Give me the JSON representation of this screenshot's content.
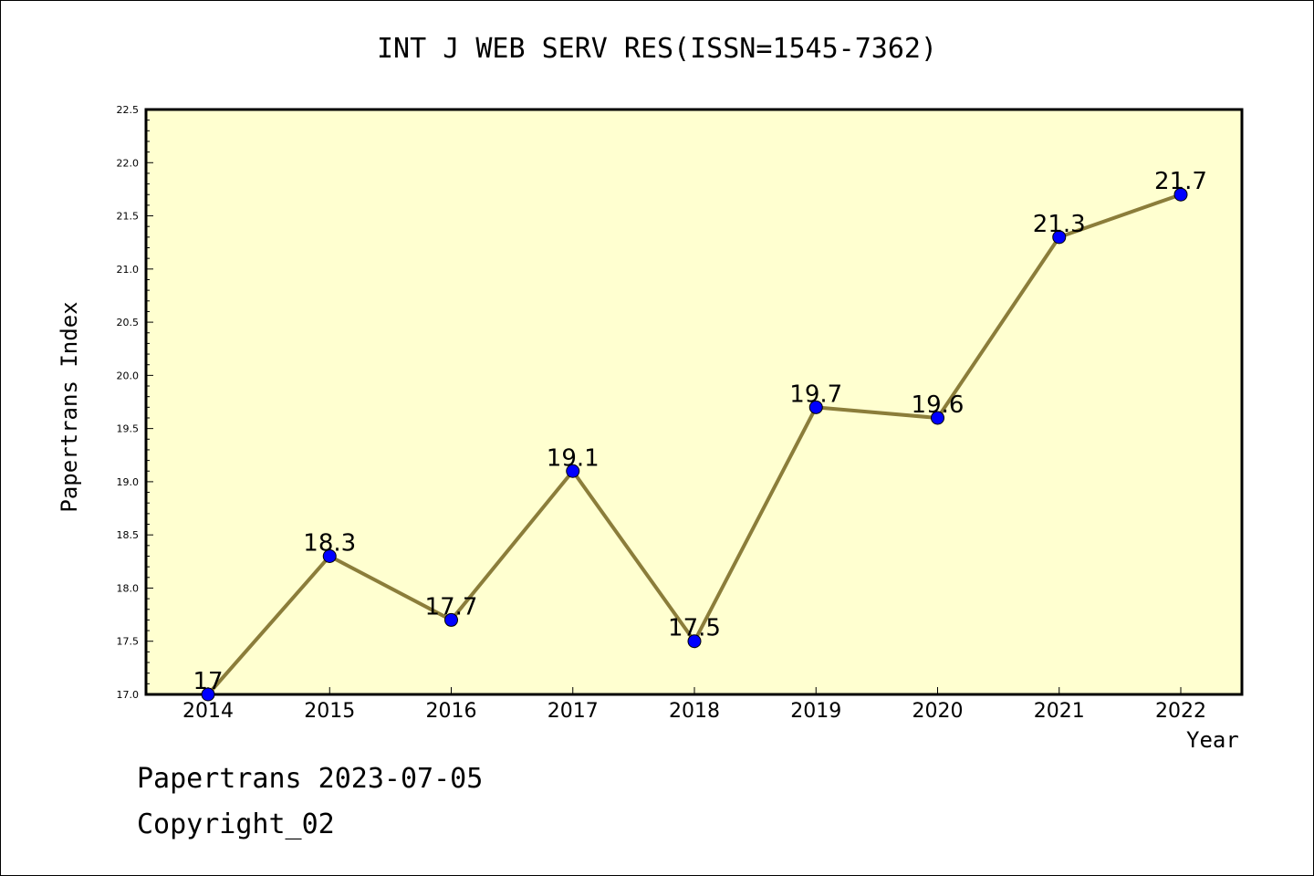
{
  "chart_data": {
    "type": "line",
    "title": "INT J WEB SERV RES(ISSN=1545-7362)",
    "xlabel": "Year",
    "ylabel": "Papertrans Index",
    "categories": [
      "2014",
      "2015",
      "2016",
      "2017",
      "2018",
      "2019",
      "2020",
      "2021",
      "2022"
    ],
    "series": [
      {
        "values": [
          17,
          18.3,
          17.7,
          19.1,
          17.5,
          19.7,
          19.6,
          21.3,
          21.7
        ],
        "labels": [
          "17",
          "18.3",
          "17.7",
          "19.1",
          "17.5",
          "19.7",
          "19.6",
          "21.3",
          "21.7"
        ],
        "line_color": "#8b7d3a",
        "marker_color": "#0000ff"
      }
    ],
    "ylim": [
      17.0,
      22.5
    ],
    "yticks": [
      "17.0",
      "17.5",
      "18.0",
      "18.5",
      "19.0",
      "19.5",
      "20.0",
      "20.5",
      "21.0",
      "21.5",
      "22.0",
      "22.5"
    ],
    "plot_background": "#ffffd0",
    "grid": false
  },
  "footer": {
    "date_text": "Papertrans 2023-07-05",
    "copyright_text": "Copyright_02"
  }
}
